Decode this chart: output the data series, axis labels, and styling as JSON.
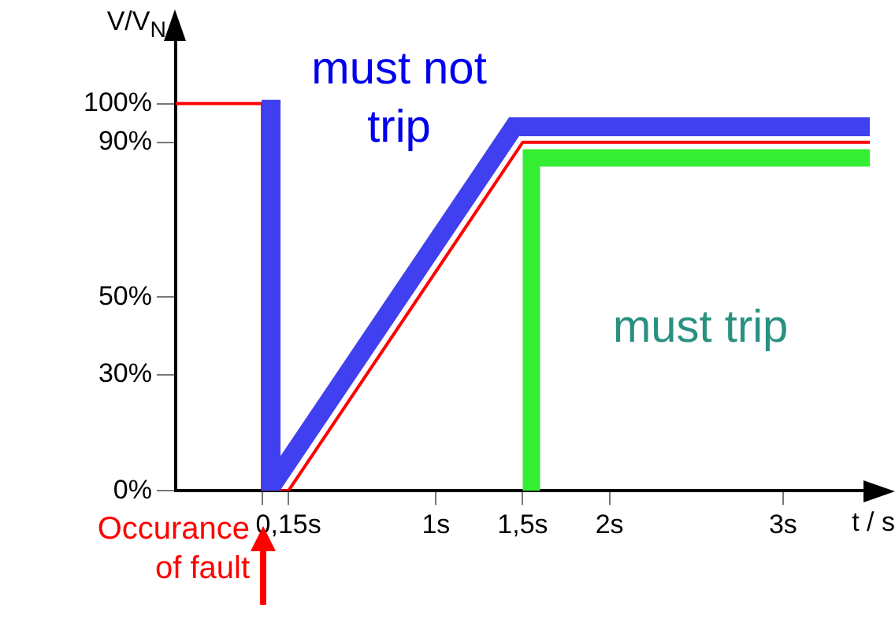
{
  "chart_data": {
    "type": "line",
    "xlabel": "t / s",
    "ylabel": "V/V$_{N}$",
    "xlim": [
      -0.5,
      3.5
    ],
    "ylim": [
      0,
      117
    ],
    "xticks": [
      {
        "value": 0,
        "label": null
      },
      {
        "value": 0.15,
        "label": "0,15s"
      },
      {
        "value": 1,
        "label": "1s"
      },
      {
        "value": 1.5,
        "label": "1,5s"
      },
      {
        "value": 2,
        "label": "2s"
      },
      {
        "value": 3,
        "label": "3s"
      }
    ],
    "yticks": [
      {
        "value": 0,
        "label": "0%"
      },
      {
        "value": 30,
        "label": "30%"
      },
      {
        "value": 50,
        "label": "50%"
      },
      {
        "value": 90,
        "label": "90%"
      },
      {
        "value": 100,
        "label": "100%"
      }
    ],
    "series": [
      {
        "color": "#4040f0",
        "x": [
          0.05,
          0.05,
          1.45,
          3.5
        ],
        "values": [
          101,
          1,
          94,
          94
        ]
      },
      {
        "color": "#33ee33",
        "x": [
          1.55,
          1.55,
          3.5
        ],
        "values": [
          0,
          86,
          86
        ]
      },
      {
        "color": "#ff0000",
        "x": [
          -0.5,
          0,
          0,
          0.15,
          1.5,
          3.5
        ],
        "values": [
          100,
          100,
          0,
          0,
          90,
          90
        ]
      }
    ],
    "annotations": [
      "must not trip",
      "must trip",
      "Occurance of fault"
    ],
    "grid": false,
    "legend": false,
    "marker": "none",
    "line_style": "solid"
  }
}
